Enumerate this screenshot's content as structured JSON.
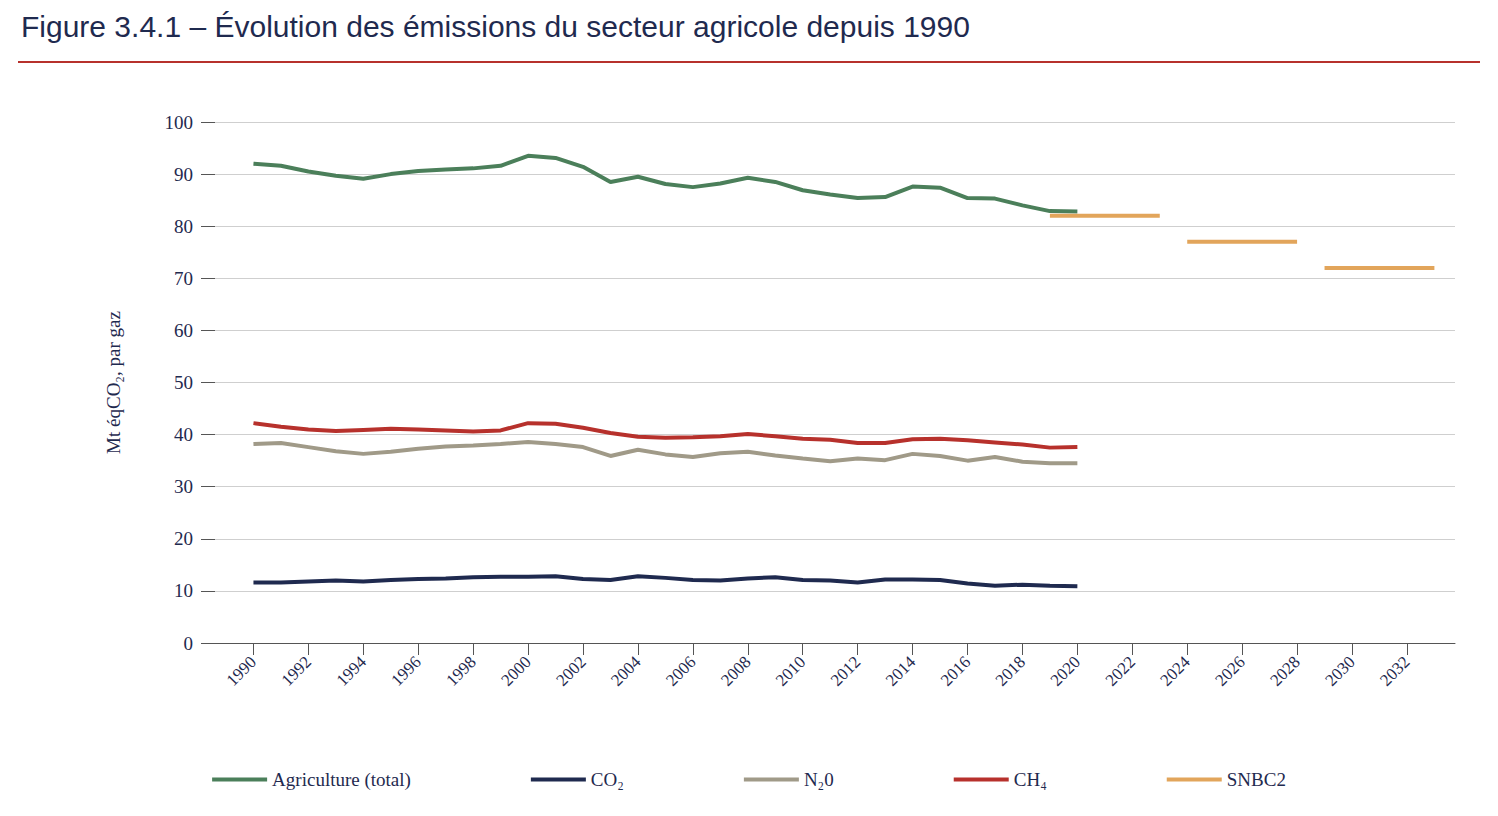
{
  "chart_data": {
    "type": "line",
    "title": "Figure 3.4.1 – Évolution des émissions du secteur agricole depuis 1990",
    "y_label": "Mt éqCO₂, par gaz",
    "x": [
      1990,
      1991,
      1992,
      1993,
      1994,
      1995,
      1996,
      1997,
      1998,
      1999,
      2000,
      2001,
      2002,
      2003,
      2004,
      2005,
      2006,
      2007,
      2008,
      2009,
      2010,
      2011,
      2012,
      2013,
      2014,
      2015,
      2016,
      2017,
      2018,
      2019,
      2020
    ],
    "series": [
      {
        "name": "Agriculture (total)",
        "color": "#4b7f5a",
        "values": [
          92.0,
          91.6,
          90.5,
          89.7,
          89.1,
          90.0,
          90.6,
          90.9,
          91.1,
          91.6,
          93.5,
          93.1,
          91.4,
          88.5,
          89.5,
          88.1,
          87.5,
          88.2,
          89.3,
          88.5,
          86.9,
          86.1,
          85.4,
          85.6,
          87.6,
          87.4,
          85.4,
          85.3,
          84.0,
          82.9,
          82.8
        ]
      },
      {
        "name": "CO₂",
        "color": "#1f2a4f",
        "values": [
          11.6,
          11.6,
          11.8,
          12.0,
          11.8,
          12.1,
          12.3,
          12.4,
          12.6,
          12.7,
          12.7,
          12.8,
          12.3,
          12.1,
          12.8,
          12.5,
          12.1,
          12.0,
          12.4,
          12.6,
          12.1,
          12.0,
          11.6,
          12.2,
          12.2,
          12.1,
          11.4,
          11.0,
          11.2,
          11.0,
          10.9
        ]
      },
      {
        "name": "N₂0",
        "color": "#a09a88",
        "values": [
          38.2,
          38.4,
          37.6,
          36.8,
          36.3,
          36.7,
          37.3,
          37.7,
          37.9,
          38.2,
          38.6,
          38.2,
          37.6,
          35.9,
          37.1,
          36.2,
          35.7,
          36.4,
          36.7,
          36.0,
          35.4,
          34.9,
          35.4,
          35.1,
          36.3,
          35.9,
          35.0,
          35.7,
          34.8,
          34.5,
          34.5
        ]
      },
      {
        "name": "CH₄",
        "color": "#b7312c",
        "values": [
          42.2,
          41.5,
          41.0,
          40.7,
          40.9,
          41.1,
          41.0,
          40.8,
          40.6,
          40.8,
          42.2,
          42.1,
          41.3,
          40.3,
          39.6,
          39.4,
          39.5,
          39.7,
          40.1,
          39.7,
          39.2,
          39.0,
          38.4,
          38.4,
          39.1,
          39.2,
          38.9,
          38.5,
          38.1,
          37.5,
          37.6
        ]
      },
      {
        "name": "SNBC2",
        "color": "#e2a55b",
        "x": [
          2019,
          2023,
          2023.5,
          2024,
          2028,
          2028.5,
          2029,
          2033
        ],
        "values": [
          82,
          82,
          null,
          77,
          77,
          null,
          72,
          72
        ]
      }
    ],
    "xlim": [
      1988.6,
      2033.75
    ],
    "xticks": [
      1990,
      1992,
      1994,
      1996,
      1998,
      2000,
      2002,
      2004,
      2006,
      2008,
      2010,
      2012,
      2014,
      2016,
      2018,
      2020,
      2022,
      2024,
      2026,
      2028,
      2030,
      2032
    ],
    "ylim": [
      0,
      100
    ],
    "yticks": [
      0,
      10,
      20,
      30,
      40,
      50,
      60,
      70,
      80,
      90,
      100
    ],
    "grid": true,
    "legend": "bottom"
  }
}
